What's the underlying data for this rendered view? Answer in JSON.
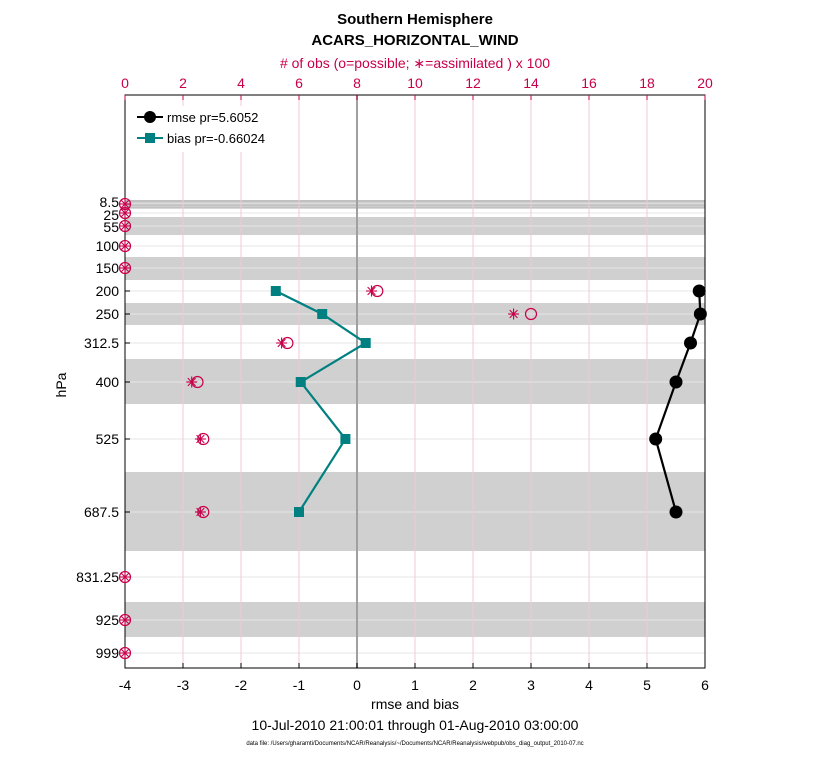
{
  "title": "Southern Hemisphere",
  "subtitle": "ACARS_HORIZONTAL_WIND",
  "top_axis_label": "# of obs (o=possible; ∗=assimilated ) x 100",
  "xlabel": "rmse and bias",
  "ylabel": "hPa",
  "date_range": "10-Jul-2010 21:00:01 through 01-Aug-2010 03:00:00",
  "footer": "data file: /Users/gharamti/Documents/NCAR/Reanalysis/~/Documents/NCAR/Reanalysis/webpub/obs_diag_output_2010-07.nc",
  "colors": {
    "rmse": "#000000",
    "bias": "#008080",
    "obs": "#c8004a",
    "band": "#d0d0d0",
    "grid": "#e6e6e6",
    "zero_line": "#a0a0a0"
  },
  "chart_data": {
    "type": "line",
    "orientation": "vertical-profile",
    "x_bottom": {
      "label": "rmse and bias",
      "lim": [
        -4,
        6
      ],
      "ticks": [
        -4,
        -3,
        -2,
        -1,
        0,
        1,
        2,
        3,
        4,
        5,
        6
      ]
    },
    "x_top": {
      "label": "# of obs (o=possible; ∗=assimilated ) x 100",
      "lim": [
        0,
        20
      ],
      "ticks": [
        0,
        2,
        4,
        6,
        8,
        10,
        12,
        14,
        16,
        18,
        20
      ]
    },
    "y": {
      "label": "hPa",
      "ticks": [
        "8.5",
        "25",
        "55",
        "100",
        "150",
        "200",
        "250",
        "312.5",
        "400",
        "525",
        "687.5",
        "831.25",
        "925",
        "999"
      ]
    },
    "grid": true,
    "legend_position": "top-left",
    "legend": [
      "rmse pr=5.6052",
      "bias pr=-0.66024"
    ],
    "series": [
      {
        "name": "rmse pr=5.6052",
        "marker": "circle",
        "levels": [
          200,
          250,
          312.5,
          400,
          525,
          687.5
        ],
        "values": [
          5.9,
          5.92,
          5.75,
          5.5,
          5.15,
          5.5
        ]
      },
      {
        "name": "bias pr=-0.66024",
        "marker": "square",
        "levels": [
          200,
          250,
          312.5,
          400,
          525,
          687.5
        ],
        "values": [
          -1.4,
          -0.6,
          0.15,
          -0.97,
          -0.2,
          -1.0
        ]
      }
    ],
    "obs_possible": {
      "levels": [
        8.5,
        25,
        55,
        100,
        150,
        200,
        250,
        312.5,
        400,
        525,
        687.5,
        831.25,
        925,
        999
      ],
      "values": [
        0,
        0,
        0,
        0,
        0,
        8.7,
        14.0,
        5.6,
        2.5,
        2.7,
        2.7,
        0,
        0,
        0
      ]
    },
    "obs_assimilated": {
      "levels": [
        8.5,
        25,
        55,
        100,
        150,
        200,
        250,
        312.5,
        400,
        525,
        687.5,
        831.25,
        925,
        999
      ],
      "values": [
        0,
        0,
        0,
        0,
        0,
        8.5,
        13.4,
        5.4,
        2.3,
        2.6,
        2.6,
        0,
        0,
        0
      ]
    }
  }
}
